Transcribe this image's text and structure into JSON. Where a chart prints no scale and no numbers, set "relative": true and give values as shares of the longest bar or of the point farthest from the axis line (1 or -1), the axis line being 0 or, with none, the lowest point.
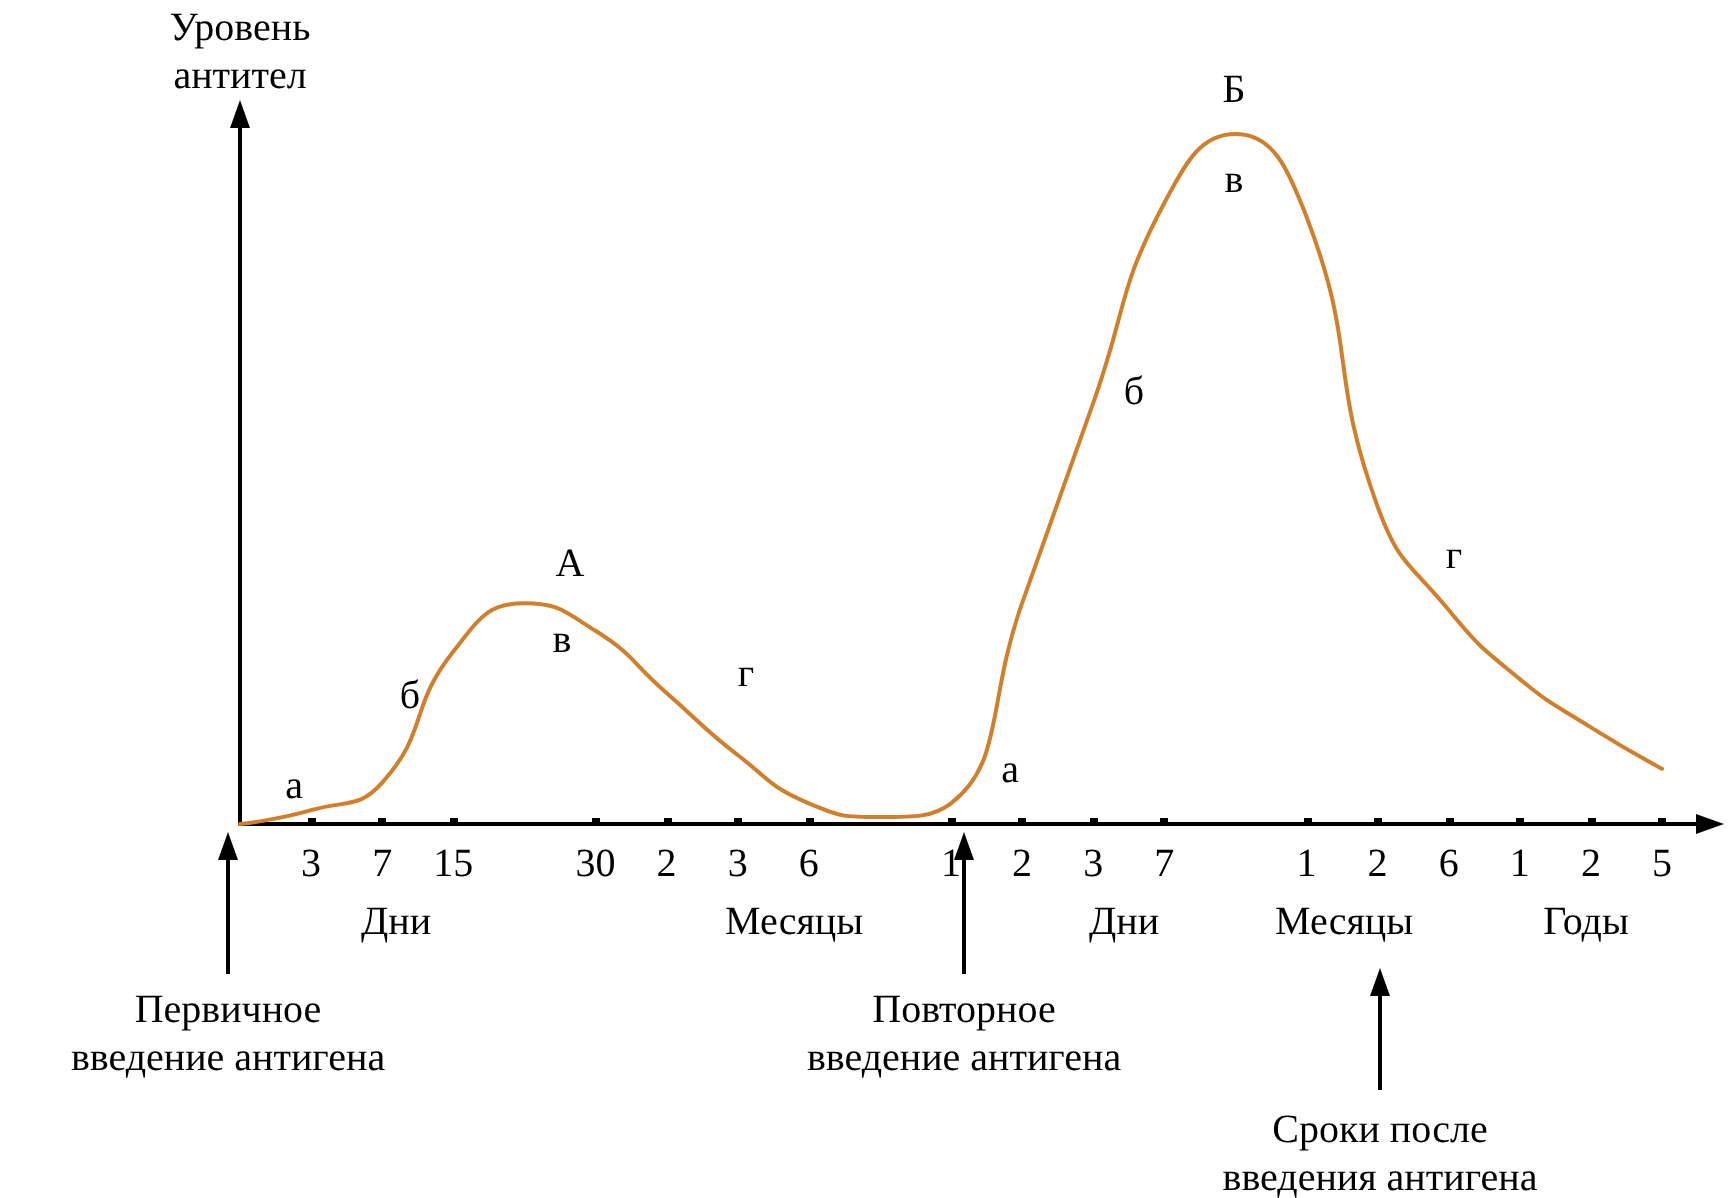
{
  "chart_data": {
    "type": "line",
    "ylabel": "Уровень антител",
    "relative": true,
    "color": "#d07f2a",
    "marker": "none",
    "grid": false,
    "categories": [
      null,
      "3",
      "7",
      "15",
      null,
      "30",
      "2",
      "3",
      "6",
      null,
      "1",
      "2",
      "3",
      "7",
      null,
      "1",
      "2",
      "6",
      "1",
      "2",
      "5"
    ],
    "values": [
      0.0,
      0.02,
      0.06,
      0.25,
      0.32,
      0.28,
      0.19,
      0.1,
      0.03,
      0.01,
      0.03,
      0.32,
      0.61,
      0.9,
      1.0,
      0.88,
      0.46,
      0.31,
      0.21,
      0.14,
      0.08
    ],
    "annotations": [
      "а",
      "б",
      "А",
      "в",
      "г",
      "а",
      "б",
      "Б",
      "в",
      "г",
      "Дни",
      "Месяцы",
      "Дни",
      "Месяцы",
      "Годы",
      "Первичное введение антигена",
      "Повторное введение антигена",
      "Сроки после введения антигена"
    ]
  }
}
